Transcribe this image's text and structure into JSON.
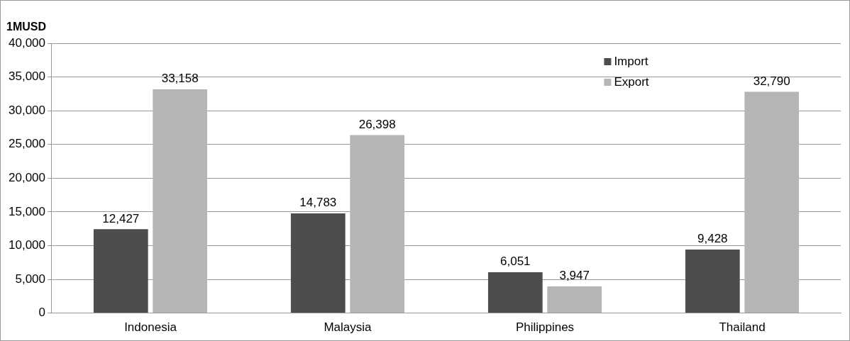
{
  "chart_data": {
    "type": "bar",
    "ylabel": "1MUSD",
    "categories": [
      "Indonesia",
      "Malaysia",
      "Philippines",
      "Thailand"
    ],
    "series": [
      {
        "name": "Import",
        "color": "#4d4d4d",
        "values": [
          12427,
          14783,
          6051,
          9428
        ],
        "value_labels": [
          "12,427",
          "14,783",
          "6,051",
          "9,428"
        ]
      },
      {
        "name": "Export",
        "color": "#b5b5b5",
        "values": [
          33158,
          26398,
          3947,
          32790
        ],
        "value_labels": [
          "33,158",
          "26,398",
          "3,947",
          "32,790"
        ]
      }
    ],
    "ylim": [
      0,
      40000
    ],
    "yticks": [
      {
        "value": 0,
        "label": "0"
      },
      {
        "value": 5000,
        "label": "5,000"
      },
      {
        "value": 10000,
        "label": "10,000"
      },
      {
        "value": 15000,
        "label": "15,000"
      },
      {
        "value": 20000,
        "label": "20,000"
      },
      {
        "value": 25000,
        "label": "25,000"
      },
      {
        "value": 30000,
        "label": "30,000"
      },
      {
        "value": 35000,
        "label": "35,000"
      },
      {
        "value": 40000,
        "label": "40,000"
      }
    ],
    "grid": "y",
    "legend": "top right"
  }
}
